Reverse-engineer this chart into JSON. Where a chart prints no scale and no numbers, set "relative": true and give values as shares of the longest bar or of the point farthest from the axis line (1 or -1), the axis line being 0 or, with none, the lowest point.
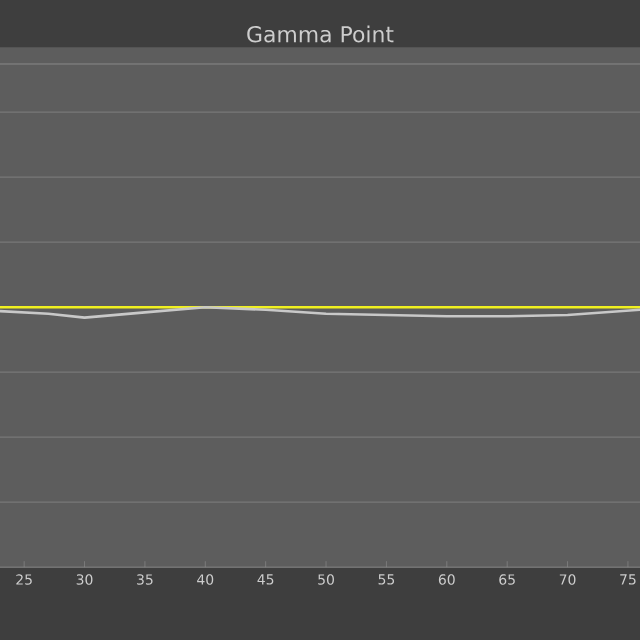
{
  "chart_data": {
    "type": "line",
    "title": "Gamma Point",
    "relative": true,
    "grid": "y",
    "xlim": [
      23,
      76
    ],
    "xticks": [
      25,
      30,
      35,
      40,
      45,
      50,
      55,
      60,
      65,
      70,
      75
    ],
    "series": [
      {
        "color": "#f0f020",
        "x": [
          23,
          76
        ],
        "values": [
          1.0,
          1.0
        ]
      },
      {
        "color": "#c8c8c8",
        "x": [
          23,
          27,
          30,
          35,
          40,
          45,
          50,
          55,
          60,
          65,
          70,
          73,
          76
        ],
        "values": [
          0.985,
          0.975,
          0.96,
          0.98,
          1.0,
          0.99,
          0.975,
          0.97,
          0.965,
          0.965,
          0.97,
          0.98,
          0.99
        ]
      }
    ]
  }
}
